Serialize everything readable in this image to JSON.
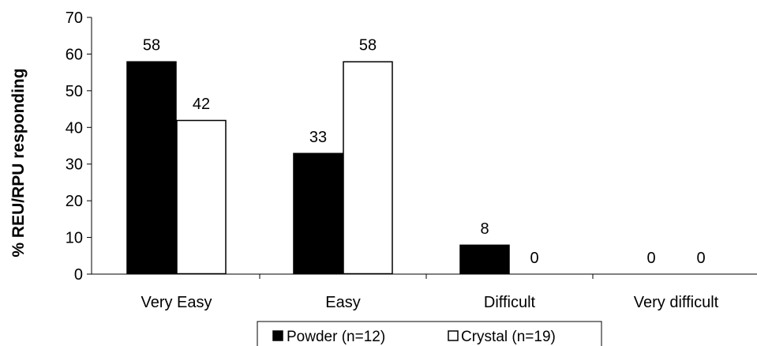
{
  "chart_data": {
    "type": "bar",
    "categories": [
      "Very Easy",
      "Easy",
      "Difficult",
      "Very difficult"
    ],
    "series": [
      {
        "name": "Powder (n=12)",
        "values": [
          58,
          33,
          8,
          0
        ],
        "color": "#000000"
      },
      {
        "name": "Crystal (n=19)",
        "values": [
          42,
          58,
          0,
          0
        ],
        "color": "#ffffff"
      }
    ],
    "data_labels": [
      [
        "58",
        "33",
        "8",
        "0"
      ],
      [
        "42",
        "58",
        "0",
        "0"
      ]
    ],
    "ylabel": "% REU/RPU  responding",
    "xlabel": "",
    "ylim": [
      0,
      70
    ],
    "yticks": [
      0,
      10,
      20,
      30,
      40,
      50,
      60,
      70
    ],
    "grid": false,
    "legend_position": "bottom"
  }
}
